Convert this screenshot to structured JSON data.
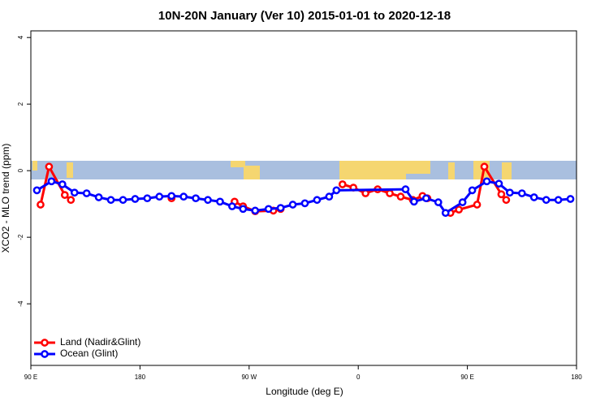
{
  "chart_data": {
    "type": "line",
    "title": "10N-20N January (Ver 10)   2015-01-01 to 2020-12-18",
    "x_label": "Longitude (deg E)",
    "y_label": "XCO2 - MLO trend (ppm)",
    "xlim": [
      90,
      540
    ],
    "ylim": [
      -5.85,
      4.2
    ],
    "xticks": [
      {
        "value": 90,
        "label": "90 E"
      },
      180,
      {
        "value": 270,
        "label": "90 W"
      },
      {
        "value": 360,
        "label": "0"
      },
      {
        "value": 450,
        "label": "90 E"
      },
      {
        "value": 540,
        "label": "180"
      }
    ],
    "yticks": [
      -4,
      -2,
      0,
      2,
      4
    ],
    "legend": "bottom-left",
    "series": [
      {
        "name": "Land (Nadir&Glint)",
        "color": "#ff0000",
        "x": [
          98,
          105,
          118,
          123,
          160,
          206,
          240,
          258,
          265,
          275,
          290,
          296,
          322,
          347,
          356,
          366,
          376,
          386,
          395,
          405,
          413,
          417,
          426,
          436,
          443,
          458,
          464,
          478,
          482
        ],
        "values": [
          -1.02,
          0.12,
          -0.73,
          -0.88,
          null,
          -0.83,
          null,
          -0.93,
          -1.07,
          -1.22,
          -1.2,
          -1.15,
          null,
          -0.41,
          -0.51,
          -0.68,
          -0.56,
          -0.68,
          -0.78,
          -0.88,
          -0.76,
          -0.83,
          null,
          -1.27,
          -1.17,
          -1.02,
          0.12,
          -0.71,
          -0.88
        ]
      },
      {
        "name": "Ocean (Glint)",
        "color": "#0000ff",
        "x": [
          95,
          107,
          116,
          126,
          136,
          146,
          156,
          166,
          176,
          186,
          196,
          206,
          216,
          226,
          236,
          246,
          256,
          265,
          275,
          286,
          296,
          306,
          316,
          326,
          336,
          342,
          399,
          406,
          416,
          426,
          432,
          446,
          454,
          466,
          476,
          485,
          495,
          505,
          515,
          525,
          535
        ],
        "values": [
          -0.59,
          -0.32,
          -0.41,
          -0.66,
          -0.68,
          -0.8,
          -0.88,
          -0.88,
          -0.85,
          -0.83,
          -0.78,
          -0.76,
          -0.78,
          -0.83,
          -0.88,
          -0.93,
          -1.07,
          -1.15,
          -1.2,
          -1.15,
          -1.12,
          -1.02,
          -0.98,
          -0.88,
          -0.78,
          -0.59,
          -0.56,
          -0.93,
          -0.83,
          -0.95,
          -1.27,
          -0.95,
          -0.59,
          -0.32,
          -0.39,
          -0.66,
          -0.68,
          -0.8,
          -0.88,
          -0.88,
          -0.85
        ]
      }
    ]
  }
}
